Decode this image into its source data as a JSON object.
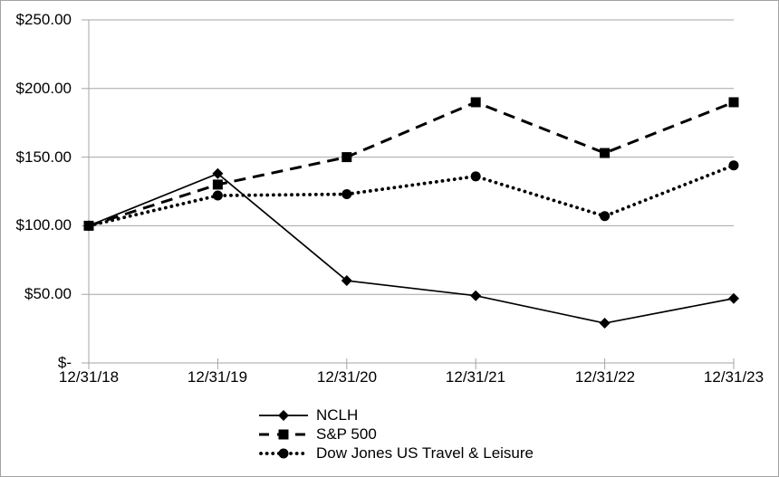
{
  "chart_data": {
    "type": "line",
    "title": "",
    "x_labels": [
      "12/31/18",
      "12/31/19",
      "12/31/20",
      "12/31/21",
      "12/31/22",
      "12/31/23"
    ],
    "series": [
      {
        "name": "NCLH",
        "line_style": "solid",
        "marker": "diamond",
        "values": [
          100,
          138,
          60,
          49,
          29,
          47
        ]
      },
      {
        "name": "S&P 500",
        "line_style": "dashed",
        "marker": "square",
        "values": [
          100,
          130,
          150,
          190,
          153,
          190
        ]
      },
      {
        "name": "Dow Jones US Travel & Leisure",
        "line_style": "dotted",
        "marker": "circle",
        "values": [
          100,
          122,
          123,
          136,
          107,
          144
        ]
      }
    ],
    "y_axis": {
      "min": 0,
      "max": 250,
      "step": 50,
      "tick_labels": [
        "$-",
        "$50.00",
        "$100.00",
        "$150.00",
        "$200.00",
        "$250.00"
      ]
    },
    "grid": true,
    "legend_position": "bottom-center",
    "colors": {
      "series": "#000000",
      "gridline": "#a6a6a6",
      "axis": "#a6a6a6",
      "text": "#000000",
      "background": "#ffffff"
    }
  }
}
